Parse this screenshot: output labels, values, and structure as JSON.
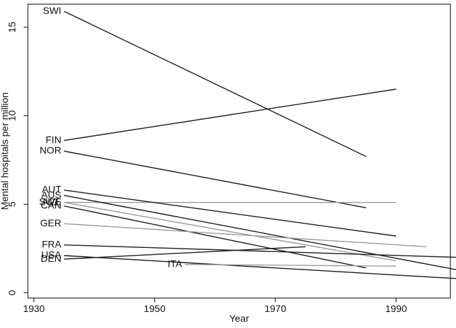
{
  "chart_data": {
    "type": "line",
    "title": "",
    "xlabel": "Year",
    "ylabel": "Mental hospitals per million",
    "xlim": [
      1929,
      1999
    ],
    "ylim": [
      -0.3,
      16.3
    ],
    "xticks": [
      1930,
      1950,
      1970,
      1990
    ],
    "yticks": [
      0,
      5,
      10,
      15
    ],
    "grid": false,
    "legend": "none",
    "series": [
      {
        "name": "SWI",
        "color": "#1a1a1a",
        "x": [
          1935,
          1985
        ],
        "y": [
          15.9,
          7.7
        ]
      },
      {
        "name": "FIN",
        "color": "#1a1a1a",
        "x": [
          1935,
          1990
        ],
        "y": [
          8.6,
          11.5
        ]
      },
      {
        "name": "NOR",
        "color": "#1a1a1a",
        "x": [
          1935,
          1985
        ],
        "y": [
          8.0,
          4.8
        ]
      },
      {
        "name": "NZL",
        "color": "#999999",
        "x": [
          1935,
          1990
        ],
        "y": [
          5.1,
          5.1
        ]
      },
      {
        "name": "AUT",
        "color": "#1a1a1a",
        "x": [
          1935,
          1990
        ],
        "y": [
          5.8,
          3.2
        ]
      },
      {
        "name": "AUS",
        "color": "#1a1a1a",
        "x": [
          1935,
          2000
        ],
        "y": [
          5.5,
          1.3
        ]
      },
      {
        "name": "SWE",
        "color": "#999999",
        "x": [
          1935,
          1990
        ],
        "y": [
          5.1,
          1.8
        ]
      },
      {
        "name": "CAN",
        "color": "#1a1a1a",
        "x": [
          1935,
          1985
        ],
        "y": [
          4.9,
          1.4
        ]
      },
      {
        "name": "GER",
        "color": "#999999",
        "x": [
          1935,
          1995
        ],
        "y": [
          3.9,
          2.6
        ]
      },
      {
        "name": "FRA",
        "color": "#1a1a1a",
        "x": [
          1935,
          2000
        ],
        "y": [
          2.7,
          2.0
        ]
      },
      {
        "name": "DEN",
        "color": "#1a1a1a",
        "x": [
          1935,
          1975
        ],
        "y": [
          1.9,
          2.6
        ]
      },
      {
        "name": "USA",
        "color": "#1a1a1a",
        "x": [
          1935,
          2000
        ],
        "y": [
          2.1,
          0.8
        ]
      },
      {
        "name": "ITA",
        "color": "#999999",
        "x": [
          1955,
          1990
        ],
        "y": [
          1.6,
          1.5
        ]
      }
    ]
  }
}
